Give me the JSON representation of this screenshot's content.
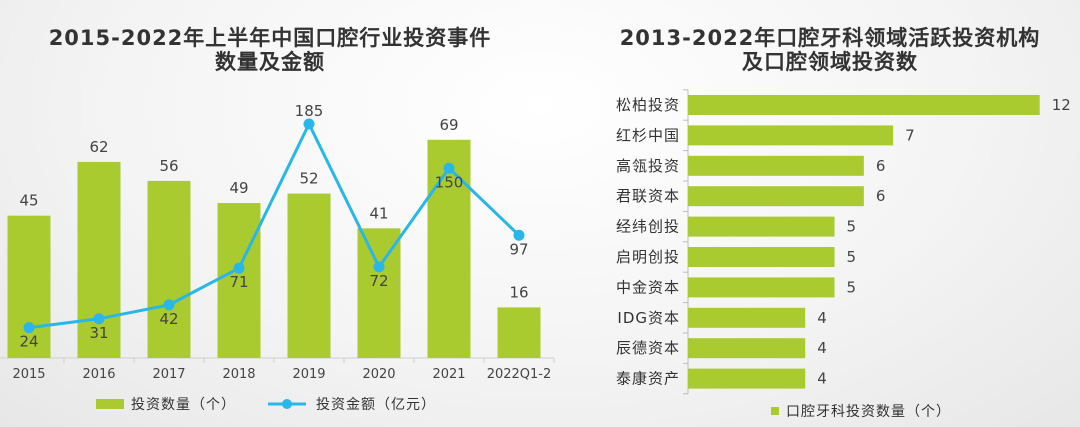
{
  "chart_data": [
    {
      "type": "bar",
      "title_lines": [
        "2015-2022年上半年中国口腔行业投资事件",
        "数量及金额"
      ],
      "categories": [
        "2015",
        "2016",
        "2017",
        "2018",
        "2019",
        "2020",
        "2021",
        "2022Q1-2"
      ],
      "series": [
        {
          "name": "投资数量（个）",
          "type": "bar",
          "axis": "left",
          "color": "#a9cb2f",
          "values": [
            45,
            62,
            56,
            49,
            52,
            41,
            69,
            16
          ]
        },
        {
          "name": "投资金额（亿元）",
          "type": "line",
          "axis": "right",
          "color": "#29b6e8",
          "values": [
            24,
            31,
            42,
            71,
            185,
            72,
            150,
            97
          ]
        }
      ],
      "xlabel": "",
      "ylabel": "",
      "ylim": [
        0,
        80
      ],
      "y2lim": [
        0,
        200
      ],
      "grid": false,
      "data_labels": true,
      "legend": "bottom"
    },
    {
      "type": "bar",
      "orientation": "horizontal",
      "title_lines": [
        "2013-2022年口腔牙科领域活跃投资机构",
        "及口腔领域投资数"
      ],
      "categories": [
        "松柏投资",
        "红杉中国",
        "高瓴投资",
        "君联资本",
        "经纬创投",
        "启明创投",
        "中金资本",
        "IDG资本",
        "辰德资本",
        "泰康资产"
      ],
      "series": [
        {
          "name": "口腔牙科投资数量（个）",
          "color": "#a9cb2f",
          "values": [
            12,
            7,
            6,
            6,
            5,
            5,
            5,
            4,
            4,
            4
          ]
        }
      ],
      "xlabel": "",
      "ylabel": "",
      "xlim": [
        0,
        13
      ],
      "grid": false,
      "data_labels": true,
      "legend": "bottom"
    }
  ]
}
